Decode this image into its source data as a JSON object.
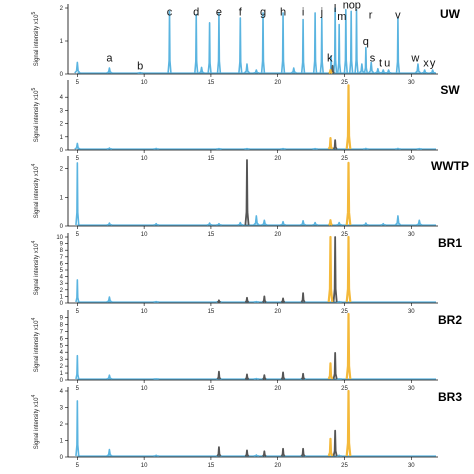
{
  "chart_data": {
    "type": "line",
    "colors": {
      "main": "#5ab4e0",
      "grey": "#555555",
      "yellow": "#f4b93a",
      "axis": "#000000"
    },
    "xlim": [
      4.3,
      32
    ],
    "xticks": [
      5,
      10,
      15,
      20,
      25,
      30
    ],
    "ylabel_text": "Signal intensity x10",
    "panels": [
      {
        "name": "UW",
        "exponent": "5",
        "ylim": [
          0,
          2
        ],
        "yticks": [
          0,
          1,
          2
        ],
        "main": [
          [
            5,
            0.35
          ],
          [
            7.4,
            0.18
          ],
          [
            9.7,
            0.04
          ],
          [
            11.9,
            1.9
          ],
          [
            13.9,
            1.8
          ],
          [
            14.3,
            0.2
          ],
          [
            14.9,
            1.55
          ],
          [
            15.6,
            1.85
          ],
          [
            17.2,
            1.7
          ],
          [
            17.7,
            0.3
          ],
          [
            18.4,
            0.12
          ],
          [
            18.9,
            1.85
          ],
          [
            20.4,
            1.85
          ],
          [
            21.2,
            0.18
          ],
          [
            21.9,
            1.65
          ],
          [
            22.8,
            1.85
          ],
          [
            23.3,
            1.7
          ],
          [
            24.0,
            0.55
          ],
          [
            24.3,
            2.0
          ],
          [
            24.6,
            1.5
          ],
          [
            25.1,
            1.95
          ],
          [
            25.5,
            1.9
          ],
          [
            25.9,
            1.95
          ],
          [
            26.3,
            0.3
          ],
          [
            26.6,
            0.8
          ],
          [
            27.0,
            0.35
          ],
          [
            27.5,
            0.16
          ],
          [
            27.9,
            0.12
          ],
          [
            28.3,
            0.12
          ],
          [
            29.0,
            1.7
          ],
          [
            30.5,
            0.3
          ],
          [
            31.0,
            0.12
          ],
          [
            31.6,
            0.12
          ]
        ],
        "grey": [
          [
            24.1,
            0.25
          ]
        ],
        "yellow": [
          [
            23.95,
            0.12
          ]
        ],
        "peak_labels": [
          {
            "text": "a",
            "x": 7.4,
            "y": 0.35
          },
          {
            "text": "b",
            "x": 9.7,
            "y": 0.1
          },
          {
            "text": "c",
            "x": 11.9,
            "y": 1.75
          },
          {
            "text": "d",
            "x": 13.9,
            "y": 1.75
          },
          {
            "text": "e",
            "x": 15.6,
            "y": 1.75
          },
          {
            "text": "f",
            "x": 17.2,
            "y": 1.75
          },
          {
            "text": "g",
            "x": 18.9,
            "y": 1.75
          },
          {
            "text": "h",
            "x": 20.4,
            "y": 1.75
          },
          {
            "text": "i",
            "x": 21.9,
            "y": 1.75
          },
          {
            "text": "j",
            "x": 23.3,
            "y": 1.75
          },
          {
            "text": "k",
            "x": 23.9,
            "y": 0.35
          },
          {
            "text": "l",
            "x": 24.3,
            "y": 1.85
          },
          {
            "text": "m",
            "x": 24.8,
            "y": 1.6
          },
          {
            "text": "n",
            "x": 25.1,
            "y": 1.95
          },
          {
            "text": "o",
            "x": 25.55,
            "y": 1.95
          },
          {
            "text": "p",
            "x": 26.0,
            "y": 1.95
          },
          {
            "text": "q",
            "x": 26.6,
            "y": 0.85
          },
          {
            "text": "r",
            "x": 26.95,
            "y": 1.65
          },
          {
            "text": "s",
            "x": 27.1,
            "y": 0.35
          },
          {
            "text": "t",
            "x": 27.7,
            "y": 0.2
          },
          {
            "text": "u",
            "x": 28.2,
            "y": 0.2
          },
          {
            "text": "v",
            "x": 29.0,
            "y": 1.65
          },
          {
            "text": "w",
            "x": 30.3,
            "y": 0.35
          },
          {
            "text": "x",
            "x": 31.1,
            "y": 0.2
          },
          {
            "text": "y",
            "x": 31.6,
            "y": 0.2
          }
        ]
      },
      {
        "name": "SW",
        "exponent": "5",
        "ylim": [
          0,
          5
        ],
        "yticks": [
          0,
          1,
          2,
          3,
          4
        ],
        "main": [
          [
            5,
            0.5
          ],
          [
            7.4,
            0.15
          ],
          [
            10.9,
            0.12
          ],
          [
            15.6,
            0.1
          ],
          [
            17.7,
            0.1
          ],
          [
            20.4,
            0.1
          ],
          [
            22.8,
            0.1
          ],
          [
            26.6,
            0.12
          ],
          [
            29.0,
            0.12
          ],
          [
            30.6,
            0.1
          ]
        ],
        "grey": [
          [
            24.3,
            0.75
          ]
        ],
        "yellow": [
          [
            23.95,
            0.9
          ],
          [
            25.3,
            4.9
          ]
        ],
        "peak_labels": []
      },
      {
        "name": "WWTP",
        "exponent": "4",
        "ylim": [
          0,
          2.3
        ],
        "yticks": [
          0,
          1,
          2
        ],
        "main": [
          [
            5,
            2.2
          ],
          [
            7.4,
            0.1
          ],
          [
            10.9,
            0.08
          ],
          [
            14.9,
            0.1
          ],
          [
            15.6,
            0.08
          ],
          [
            17.2,
            0.12
          ],
          [
            18.4,
            0.35
          ],
          [
            19.0,
            0.2
          ],
          [
            20.4,
            0.15
          ],
          [
            21.9,
            0.18
          ],
          [
            22.8,
            0.12
          ],
          [
            24.6,
            0.12
          ],
          [
            26.6,
            0.1
          ],
          [
            27.9,
            0.08
          ],
          [
            29.0,
            0.35
          ],
          [
            30.6,
            0.2
          ]
        ],
        "grey": [
          [
            17.7,
            2.3
          ]
        ],
        "yellow": [
          [
            23.95,
            0.2
          ],
          [
            25.3,
            2.2
          ]
        ],
        "peak_labels": []
      },
      {
        "name": "BR1",
        "exponent": "4",
        "ylim": [
          0,
          10
        ],
        "yticks": [
          0,
          1,
          2,
          3,
          4,
          5,
          6,
          7,
          8,
          9,
          10
        ],
        "main": [
          [
            5,
            3.5
          ],
          [
            7.4,
            0.9
          ],
          [
            10.9,
            0.2
          ],
          [
            15.6,
            0.3
          ],
          [
            18.4,
            0.2
          ],
          [
            24.6,
            0.2
          ]
        ],
        "grey": [
          [
            15.6,
            0.4
          ],
          [
            17.7,
            0.8
          ],
          [
            19.0,
            1.0
          ],
          [
            20.4,
            0.7
          ],
          [
            21.9,
            1.5
          ],
          [
            24.3,
            10
          ]
        ],
        "yellow": [
          [
            23.95,
            10
          ],
          [
            25.3,
            10
          ]
        ],
        "peak_labels": []
      },
      {
        "name": "BR2",
        "exponent": "4",
        "ylim": [
          0,
          9.5
        ],
        "yticks": [
          0,
          1,
          2,
          3,
          4,
          5,
          6,
          7,
          8,
          9
        ],
        "main": [
          [
            5,
            3.5
          ],
          [
            7.4,
            0.7
          ],
          [
            10.9,
            0.15
          ],
          [
            15.6,
            0.2
          ],
          [
            18.4,
            0.2
          ],
          [
            21.9,
            0.3
          ],
          [
            24.6,
            0.15
          ]
        ],
        "grey": [
          [
            15.6,
            1.2
          ],
          [
            17.7,
            0.8
          ],
          [
            19.0,
            0.7
          ],
          [
            20.4,
            1.1
          ],
          [
            21.9,
            0.9
          ],
          [
            24.3,
            3.9
          ]
        ],
        "yellow": [
          [
            23.95,
            2.4
          ],
          [
            25.3,
            9.5
          ]
        ],
        "peak_labels": []
      },
      {
        "name": "BR3",
        "exponent": "4",
        "ylim": [
          0,
          4
        ],
        "yticks": [
          0,
          1,
          2,
          3,
          4
        ],
        "main": [
          [
            5,
            3.4
          ],
          [
            7.4,
            0.45
          ],
          [
            10.9,
            0.1
          ],
          [
            15.6,
            0.15
          ],
          [
            18.4,
            0.12
          ],
          [
            21.9,
            0.2
          ],
          [
            24.6,
            0.1
          ]
        ],
        "grey": [
          [
            15.6,
            0.6
          ],
          [
            17.7,
            0.4
          ],
          [
            19.0,
            0.35
          ],
          [
            20.4,
            0.5
          ],
          [
            21.9,
            0.5
          ],
          [
            24.3,
            1.6
          ]
        ],
        "yellow": [
          [
            23.95,
            1.1
          ],
          [
            25.3,
            4.0
          ]
        ],
        "peak_labels": []
      }
    ]
  }
}
